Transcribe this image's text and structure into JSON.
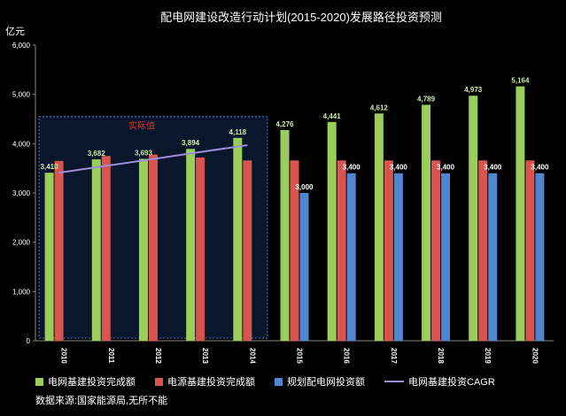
{
  "chart_data": {
    "type": "bar",
    "title": "配电网建设改造行动计划(2015-2020)发展路径投资预测",
    "ylabel": "亿元",
    "ylim": [
      0,
      6000
    ],
    "yticks": [
      "0",
      "1,000",
      "2,000",
      "3,000",
      "4,000",
      "5,000",
      "6,000"
    ],
    "categories": [
      "2010",
      "2011",
      "2012",
      "2013",
      "2014",
      "2015",
      "2016",
      "2017",
      "2018",
      "2019",
      "2020"
    ],
    "series": [
      {
        "name": "电网基建投资完成额",
        "color": "#9acd5a",
        "values": [
          3410,
          3682,
          3693,
          3894,
          4118,
          4276,
          4441,
          4612,
          4789,
          4973,
          5164
        ],
        "labels": [
          "3,410",
          "3,682",
          "3,693",
          "3,894",
          "4,118",
          "4,276",
          "4,441",
          "4,612",
          "4,789",
          "4,973",
          "5,164"
        ]
      },
      {
        "name": "电源基建投资完成额",
        "color": "#d9534f",
        "values": [
          3650,
          3750,
          3780,
          3720,
          3660,
          3660,
          3660,
          3660,
          3660,
          3660,
          3660
        ]
      },
      {
        "name": "规划配电网投资额",
        "color": "#4f86d0",
        "values": [
          null,
          null,
          null,
          null,
          null,
          3000,
          3400,
          3400,
          3400,
          3400,
          3400
        ],
        "labels": [
          "",
          "",
          "",
          "",
          "",
          "3,000",
          "3,400",
          "3,400",
          "3,400",
          "3,400",
          "3,400"
        ]
      },
      {
        "name": "电网基建投资CAGR",
        "color": "#9b8fd8",
        "type": "line",
        "values": [
          3410,
          3550,
          3690,
          3830,
          3970,
          null,
          null,
          null,
          null,
          null,
          null
        ]
      }
    ],
    "annotation": "实际值",
    "legend_position": "bottom",
    "grid": false
  },
  "source_text": "数据来源:国家能源局,无所不能"
}
